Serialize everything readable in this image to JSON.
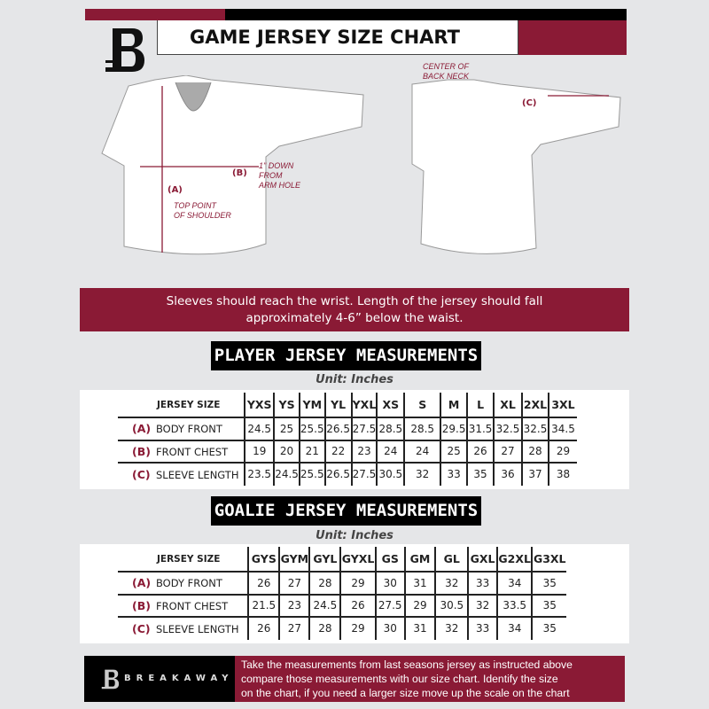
{
  "header": {
    "title": "GAME JERSEY SIZE CHART",
    "logo_letter": "B"
  },
  "diagram": {
    "front": {
      "label_a": "(A)",
      "label_b": "(B)",
      "top_point": [
        "TOP POINT",
        "OF SHOULDER"
      ],
      "armhole": [
        "1\" DOWN",
        "FROM",
        "ARM HOLE"
      ]
    },
    "back": {
      "label_c": "(C)",
      "neck": [
        "CENTER OF",
        "BACK NECK"
      ]
    }
  },
  "banner": {
    "line1": "Sleeves should reach the wrist. Length of the jersey should fall",
    "line2": "approximately 4-6” below the waist."
  },
  "player": {
    "title": "PLAYER JERSEY MEASUREMENTS",
    "unit": "Unit: Inches",
    "size_header": "JERSEY SIZE",
    "sizes": [
      "YXS",
      "YS",
      "YM",
      "YL",
      "YXL",
      "XS",
      "S",
      "M",
      "L",
      "XL",
      "2XL",
      "3XL"
    ],
    "rows": [
      {
        "key": "(A)",
        "label": "BODY FRONT",
        "values": [
          "24.5",
          "25",
          "25.5",
          "26.5",
          "27.5",
          "28.5",
          "28.5",
          "29.5",
          "31.5",
          "32.5",
          "32.5",
          "34.5"
        ]
      },
      {
        "key": "(B)",
        "label": "FRONT CHEST",
        "values": [
          "19",
          "20",
          "21",
          "22",
          "23",
          "24",
          "24",
          "25",
          "26",
          "27",
          "28",
          "29"
        ]
      },
      {
        "key": "(C)",
        "label": "SLEEVE LENGTH",
        "values": [
          "23.5",
          "24.5",
          "25.5",
          "26.5",
          "27.5",
          "30.5",
          "32",
          "33",
          "35",
          "36",
          "37",
          "38"
        ]
      }
    ]
  },
  "goalie": {
    "title": "GOALIE JERSEY MEASUREMENTS",
    "unit": "Unit: Inches",
    "size_header": "JERSEY SIZE",
    "sizes": [
      "GYS",
      "GYM",
      "GYL",
      "GYXL",
      "GS",
      "GM",
      "GL",
      "GXL",
      "G2XL",
      "G3XL"
    ],
    "rows": [
      {
        "key": "(A)",
        "label": "BODY FRONT",
        "values": [
          "26",
          "27",
          "28",
          "29",
          "30",
          "31",
          "32",
          "33",
          "34",
          "35"
        ]
      },
      {
        "key": "(B)",
        "label": "FRONT CHEST",
        "values": [
          "21.5",
          "23",
          "24.5",
          "26",
          "27.5",
          "29",
          "30.5",
          "32",
          "33.5",
          "35"
        ]
      },
      {
        "key": "(C)",
        "label": "SLEEVE LENGTH",
        "values": [
          "26",
          "27",
          "28",
          "29",
          "30",
          "31",
          "32",
          "33",
          "34",
          "35"
        ]
      }
    ]
  },
  "footer": {
    "brand": "BREAKAWAY",
    "lines": [
      "Take the measurements from last seasons jersey as instructed above",
      "compare those measurements  with our size chart. Identify the size",
      "on the chart, if you need a larger size move up the scale on the chart"
    ]
  },
  "colors": {
    "accent": "#8a1a35",
    "dark": "#000000",
    "background": "#e5e6e8"
  }
}
